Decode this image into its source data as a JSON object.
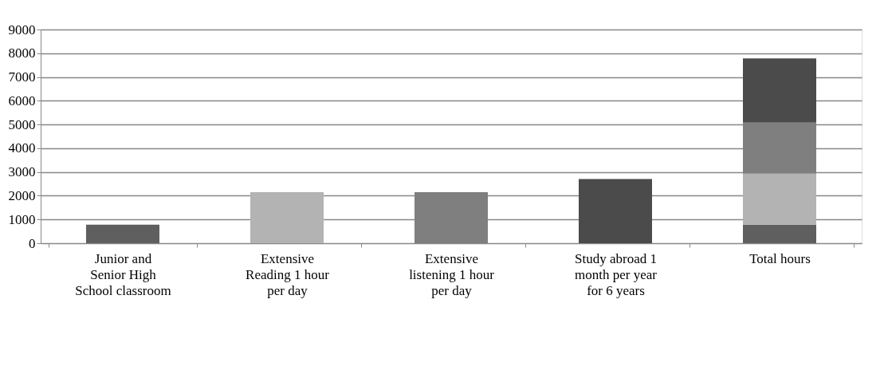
{
  "chart_data": {
    "type": "bar",
    "stacked": true,
    "categories": [
      "Junior and Senior High School classroom",
      "Extensive Reading 1 hour per day",
      "Extensive listening 1 hour per day",
      "Study abroad 1 month per year for 6 years",
      "Total hours"
    ],
    "series": [
      {
        "color": "#5f5f5f",
        "values": [
          780,
          null,
          null,
          null,
          780
        ]
      },
      {
        "color": "#b3b3b3",
        "values": [
          null,
          2150,
          null,
          null,
          2150
        ]
      },
      {
        "color": "#7f7f7f",
        "values": [
          null,
          null,
          2150,
          null,
          2150
        ]
      },
      {
        "color": "#4b4b4b",
        "values": [
          null,
          null,
          null,
          2700,
          2700
        ]
      }
    ],
    "ylim": [
      0,
      9000
    ],
    "yticks": [
      0,
      1000,
      2000,
      3000,
      4000,
      5000,
      6000,
      7000,
      8000,
      9000
    ],
    "grid": "y",
    "legend": false
  }
}
